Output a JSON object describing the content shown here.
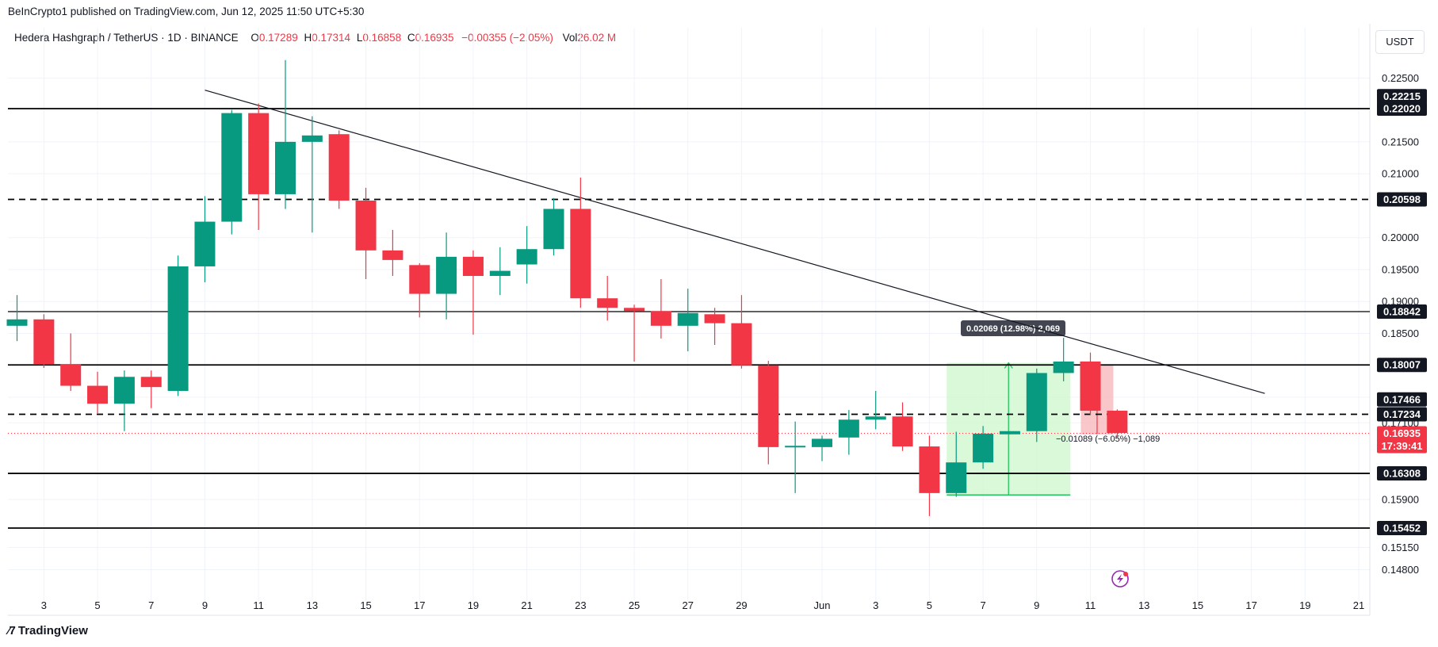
{
  "header": {
    "publisher": "BeInCrypto1 published on TradingView.com, Jun 12, 2025 11:50 UTC+5:30"
  },
  "legend": {
    "symbol": "Hedera Hashgraph / TetherUS · 1D · BINANCE",
    "o_key": "O",
    "o_val": "0.17289",
    "h_key": "H",
    "h_val": "0.17314",
    "l_key": "L",
    "l_val": "0.16858",
    "c_key": "C",
    "c_val": "0.16935",
    "chg": "−0.00355 (−2.05%)",
    "vol_key": "Vol",
    "vol_val": "26.02 M"
  },
  "currency": "USDT",
  "logo": "TradingView",
  "colors": {
    "up": "#089981",
    "down": "#f23645",
    "grid": "#f0f3fa",
    "line": "#000000",
    "range_up_fill": "#ccf7cc",
    "range_down_fill": "#f8b8bd"
  },
  "chart_data": {
    "type": "candlestick",
    "ylim": [
      0.147,
      0.2275
    ],
    "y_ticks": [
      0.225,
      0.215,
      0.21,
      0.2,
      0.195,
      0.19,
      0.185,
      0.175,
      0.171,
      0.159,
      0.1515,
      0.148
    ],
    "y_tick_labels": [
      "0.22500",
      "0.21500",
      "0.21000",
      "0.20000",
      "0.19500",
      "0.19000",
      "0.18500",
      "0.17500",
      "0.17100",
      "0.15900",
      "0.15150",
      "0.14800"
    ],
    "x_ticks": [
      {
        "day": 3,
        "label": "3"
      },
      {
        "day": 5,
        "label": "5"
      },
      {
        "day": 7,
        "label": "7"
      },
      {
        "day": 9,
        "label": "9"
      },
      {
        "day": 11,
        "label": "11"
      },
      {
        "day": 13,
        "label": "13"
      },
      {
        "day": 15,
        "label": "15"
      },
      {
        "day": 17,
        "label": "17"
      },
      {
        "day": 19,
        "label": "19"
      },
      {
        "day": 21,
        "label": "21"
      },
      {
        "day": 23,
        "label": "23"
      },
      {
        "day": 25,
        "label": "25"
      },
      {
        "day": 27,
        "label": "27"
      },
      {
        "day": 29,
        "label": "29"
      },
      {
        "day": 32,
        "label": "Jun"
      },
      {
        "day": 34,
        "label": "3"
      },
      {
        "day": 36,
        "label": "5"
      },
      {
        "day": 38,
        "label": "7"
      },
      {
        "day": 40,
        "label": "9"
      },
      {
        "day": 42,
        "label": "11"
      },
      {
        "day": 44,
        "label": "13"
      },
      {
        "day": 46,
        "label": "15"
      },
      {
        "day": 48,
        "label": "17"
      },
      {
        "day": 50,
        "label": "19"
      },
      {
        "day": 52,
        "label": "21"
      }
    ],
    "candles": [
      {
        "day": 2,
        "o": 0.1862,
        "h": 0.191,
        "l": 0.1838,
        "c": 0.1872
      },
      {
        "day": 3,
        "o": 0.1872,
        "h": 0.188,
        "l": 0.1796,
        "c": 0.1802
      },
      {
        "day": 4,
        "o": 0.1802,
        "h": 0.185,
        "l": 0.176,
        "c": 0.1768
      },
      {
        "day": 5,
        "o": 0.1768,
        "h": 0.179,
        "l": 0.1725,
        "c": 0.174
      },
      {
        "day": 6,
        "o": 0.174,
        "h": 0.1792,
        "l": 0.1697,
        "c": 0.1782
      },
      {
        "day": 7,
        "o": 0.1782,
        "h": 0.1792,
        "l": 0.1733,
        "c": 0.1766
      },
      {
        "day": 8,
        "o": 0.176,
        "h": 0.1972,
        "l": 0.1752,
        "c": 0.1955
      },
      {
        "day": 9,
        "o": 0.1955,
        "h": 0.2065,
        "l": 0.193,
        "c": 0.2025
      },
      {
        "day": 10,
        "o": 0.2025,
        "h": 0.22,
        "l": 0.2005,
        "c": 0.2195
      },
      {
        "day": 11,
        "o": 0.2195,
        "h": 0.221,
        "l": 0.2012,
        "c": 0.2068
      },
      {
        "day": 12,
        "o": 0.2068,
        "h": 0.2278,
        "l": 0.2045,
        "c": 0.215
      },
      {
        "day": 13,
        "o": 0.215,
        "h": 0.219,
        "l": 0.2008,
        "c": 0.216
      },
      {
        "day": 14,
        "o": 0.2162,
        "h": 0.2168,
        "l": 0.2045,
        "c": 0.2058
      },
      {
        "day": 15,
        "o": 0.2058,
        "h": 0.2078,
        "l": 0.1935,
        "c": 0.198
      },
      {
        "day": 16,
        "o": 0.198,
        "h": 0.2012,
        "l": 0.194,
        "c": 0.1965
      },
      {
        "day": 17,
        "o": 0.1957,
        "h": 0.196,
        "l": 0.1875,
        "c": 0.1912
      },
      {
        "day": 18,
        "o": 0.1912,
        "h": 0.2008,
        "l": 0.1872,
        "c": 0.197
      },
      {
        "day": 19,
        "o": 0.197,
        "h": 0.198,
        "l": 0.1848,
        "c": 0.194
      },
      {
        "day": 20,
        "o": 0.194,
        "h": 0.1985,
        "l": 0.191,
        "c": 0.1948
      },
      {
        "day": 21,
        "o": 0.1958,
        "h": 0.2018,
        "l": 0.1928,
        "c": 0.1982
      },
      {
        "day": 22,
        "o": 0.1982,
        "h": 0.2062,
        "l": 0.1972,
        "c": 0.2045
      },
      {
        "day": 23,
        "o": 0.2045,
        "h": 0.2094,
        "l": 0.189,
        "c": 0.1905
      },
      {
        "day": 24,
        "o": 0.1905,
        "h": 0.194,
        "l": 0.187,
        "c": 0.189
      },
      {
        "day": 25,
        "o": 0.189,
        "h": 0.1895,
        "l": 0.1806,
        "c": 0.1885
      },
      {
        "day": 26,
        "o": 0.1885,
        "h": 0.1935,
        "l": 0.1842,
        "c": 0.1862
      },
      {
        "day": 27,
        "o": 0.1862,
        "h": 0.192,
        "l": 0.1822,
        "c": 0.1882
      },
      {
        "day": 28,
        "o": 0.188,
        "h": 0.189,
        "l": 0.1832,
        "c": 0.1866
      },
      {
        "day": 29,
        "o": 0.1866,
        "h": 0.191,
        "l": 0.1795,
        "c": 0.18
      },
      {
        "day": 30,
        "o": 0.18,
        "h": 0.1807,
        "l": 0.1645,
        "c": 0.1672
      },
      {
        "day": 31,
        "o": 0.1672,
        "h": 0.1712,
        "l": 0.16,
        "c": 0.1674
      },
      {
        "day": 32,
        "o": 0.1672,
        "h": 0.169,
        "l": 0.165,
        "c": 0.1685
      },
      {
        "day": 33,
        "o": 0.1687,
        "h": 0.173,
        "l": 0.166,
        "c": 0.1715
      },
      {
        "day": 34,
        "o": 0.1715,
        "h": 0.176,
        "l": 0.17,
        "c": 0.172
      },
      {
        "day": 35,
        "o": 0.172,
        "h": 0.1742,
        "l": 0.1666,
        "c": 0.1673
      },
      {
        "day": 36,
        "o": 0.1673,
        "h": 0.169,
        "l": 0.1564,
        "c": 0.16
      },
      {
        "day": 37,
        "o": 0.16,
        "h": 0.1696,
        "l": 0.1594,
        "c": 0.1648
      },
      {
        "day": 38,
        "o": 0.1648,
        "h": 0.1705,
        "l": 0.1638,
        "c": 0.1693
      },
      {
        "day": 39,
        "o": 0.1692,
        "h": 0.1697,
        "l": 0.1692,
        "c": 0.1697
      },
      {
        "day": 40,
        "o": 0.1697,
        "h": 0.1795,
        "l": 0.168,
        "c": 0.1788
      },
      {
        "day": 41,
        "o": 0.1788,
        "h": 0.1843,
        "l": 0.1775,
        "c": 0.1806
      },
      {
        "day": 42,
        "o": 0.1806,
        "h": 0.182,
        "l": 0.1722,
        "c": 0.1729
      },
      {
        "day": 43,
        "o": 0.1729,
        "h": 0.1731,
        "l": 0.1686,
        "c": 0.1694
      }
    ],
    "levels": [
      {
        "value": 0.2202,
        "style": "solid",
        "label": "0.22020"
      },
      {
        "value": 0.20598,
        "style": "dashed",
        "label": "0.20598"
      },
      {
        "value": 0.18842,
        "style": "solid-thin",
        "label": "0.18842"
      },
      {
        "value": 0.18007,
        "style": "solid",
        "label": "0.18007"
      },
      {
        "value": 0.17234,
        "style": "dashed",
        "label": "0.17234"
      },
      {
        "value": 0.16308,
        "style": "solid",
        "label": "0.16308"
      },
      {
        "value": 0.15452,
        "style": "solid",
        "label": "0.15452"
      }
    ],
    "extra_labels": [
      {
        "value": 0.22215,
        "label": "0.22215"
      },
      {
        "value": 0.17466,
        "label": "0.17466"
      }
    ],
    "current_price": {
      "value": 0.16935,
      "label": "0.16935",
      "countdown": "17:39:41"
    },
    "trendline": {
      "start": {
        "day": 9.0,
        "price": 0.2231
      },
      "end": {
        "day": 48.5,
        "price": 0.1756
      }
    },
    "ranges": [
      {
        "type": "up",
        "day_start": 37.0,
        "day_end": 40.9,
        "price_start": 0.1597,
        "price_end": 0.1804,
        "label": "0.02069 (12.98%) 2,069",
        "label_pos": "above"
      },
      {
        "type": "down",
        "day_start": 42.0,
        "day_end": 42.5,
        "price_start": 0.18,
        "price_end": 0.1692,
        "label": "−0.01089 (−6.05%) −1,089",
        "label_pos": "below"
      }
    ]
  }
}
